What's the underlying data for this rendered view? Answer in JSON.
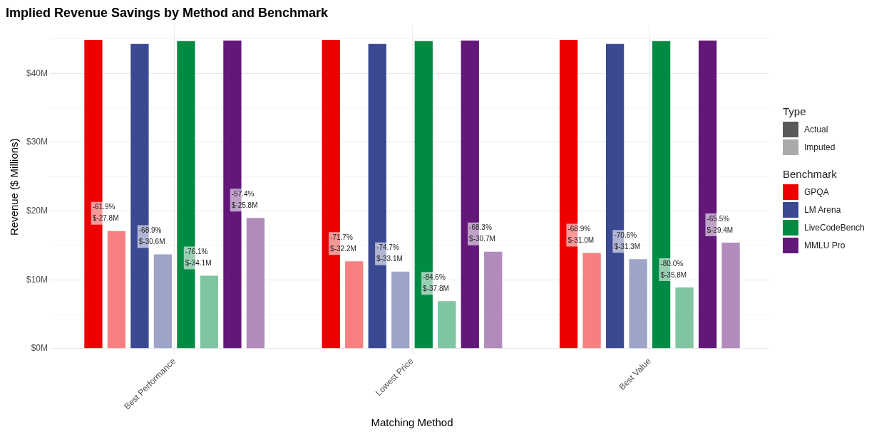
{
  "chart_data": {
    "type": "bar",
    "title": "Implied Revenue Savings by Method and Benchmark",
    "xlabel": "Matching Method",
    "ylabel": "Revenue ($ Millions)",
    "legend_title": "Benchmark",
    "legend": "right",
    "grid": true,
    "annotations": [
      "Type",
      "Actual",
      "Imputed",
      "-61.9%\n$-27.8M",
      "-71.7%\n$-32.2M",
      "-68.9%\n$-31.0M",
      "-68.9%\n$-30.6M",
      "-74.7%\n$-33.1M",
      "-70.6%\n$-31.3M",
      "-76.1%\n$-34.1M",
      "-84.6%\n$-37.8M",
      "-80.0%\n$-35.8M",
      "-57.4%\n$-25.8M",
      "-68.3%\n$-30.7M",
      "-65.5%\n$-29.4M"
    ],
    "categories": [
      "Best Performance",
      "Lowest Price",
      "Best Value"
    ],
    "ylim": [
      0,
      47
    ],
    "yticks": [
      {
        "value": 0,
        "label": "$0M"
      },
      {
        "value": 5,
        "label": null
      },
      {
        "value": 10,
        "label": "$10M"
      },
      {
        "value": 15,
        "label": null
      },
      {
        "value": 20,
        "label": "$20M"
      },
      {
        "value": 25,
        "label": null
      },
      {
        "value": 30,
        "label": "$30M"
      },
      {
        "value": 35,
        "label": null
      },
      {
        "value": 40,
        "label": "$40M"
      },
      {
        "value": 45,
        "label": null
      }
    ],
    "series": [
      {
        "name": "GPQA",
        "color": "#ee0000",
        "values": [
          45.0,
          45.0,
          45.0
        ]
      },
      {
        "color": "#f68080",
        "values": [
          17.2,
          12.8,
          14.0
        ]
      },
      {
        "name": "LM Arena",
        "color": "#3b4992",
        "values": [
          44.4,
          44.4,
          44.4
        ]
      },
      {
        "color": "#9da4c8",
        "values": [
          13.8,
          11.3,
          13.1
        ]
      },
      {
        "name": "LiveCodeBench",
        "color": "#008b45",
        "values": [
          44.8,
          44.8,
          44.8
        ]
      },
      {
        "color": "#7fc5a2",
        "values": [
          10.7,
          7.0,
          9.0
        ]
      },
      {
        "name": "MMLU Pro",
        "color": "#631879",
        "values": [
          44.9,
          44.9,
          44.9
        ]
      },
      {
        "color": "#b18bbc",
        "values": [
          19.1,
          14.2,
          15.5
        ]
      }
    ]
  }
}
